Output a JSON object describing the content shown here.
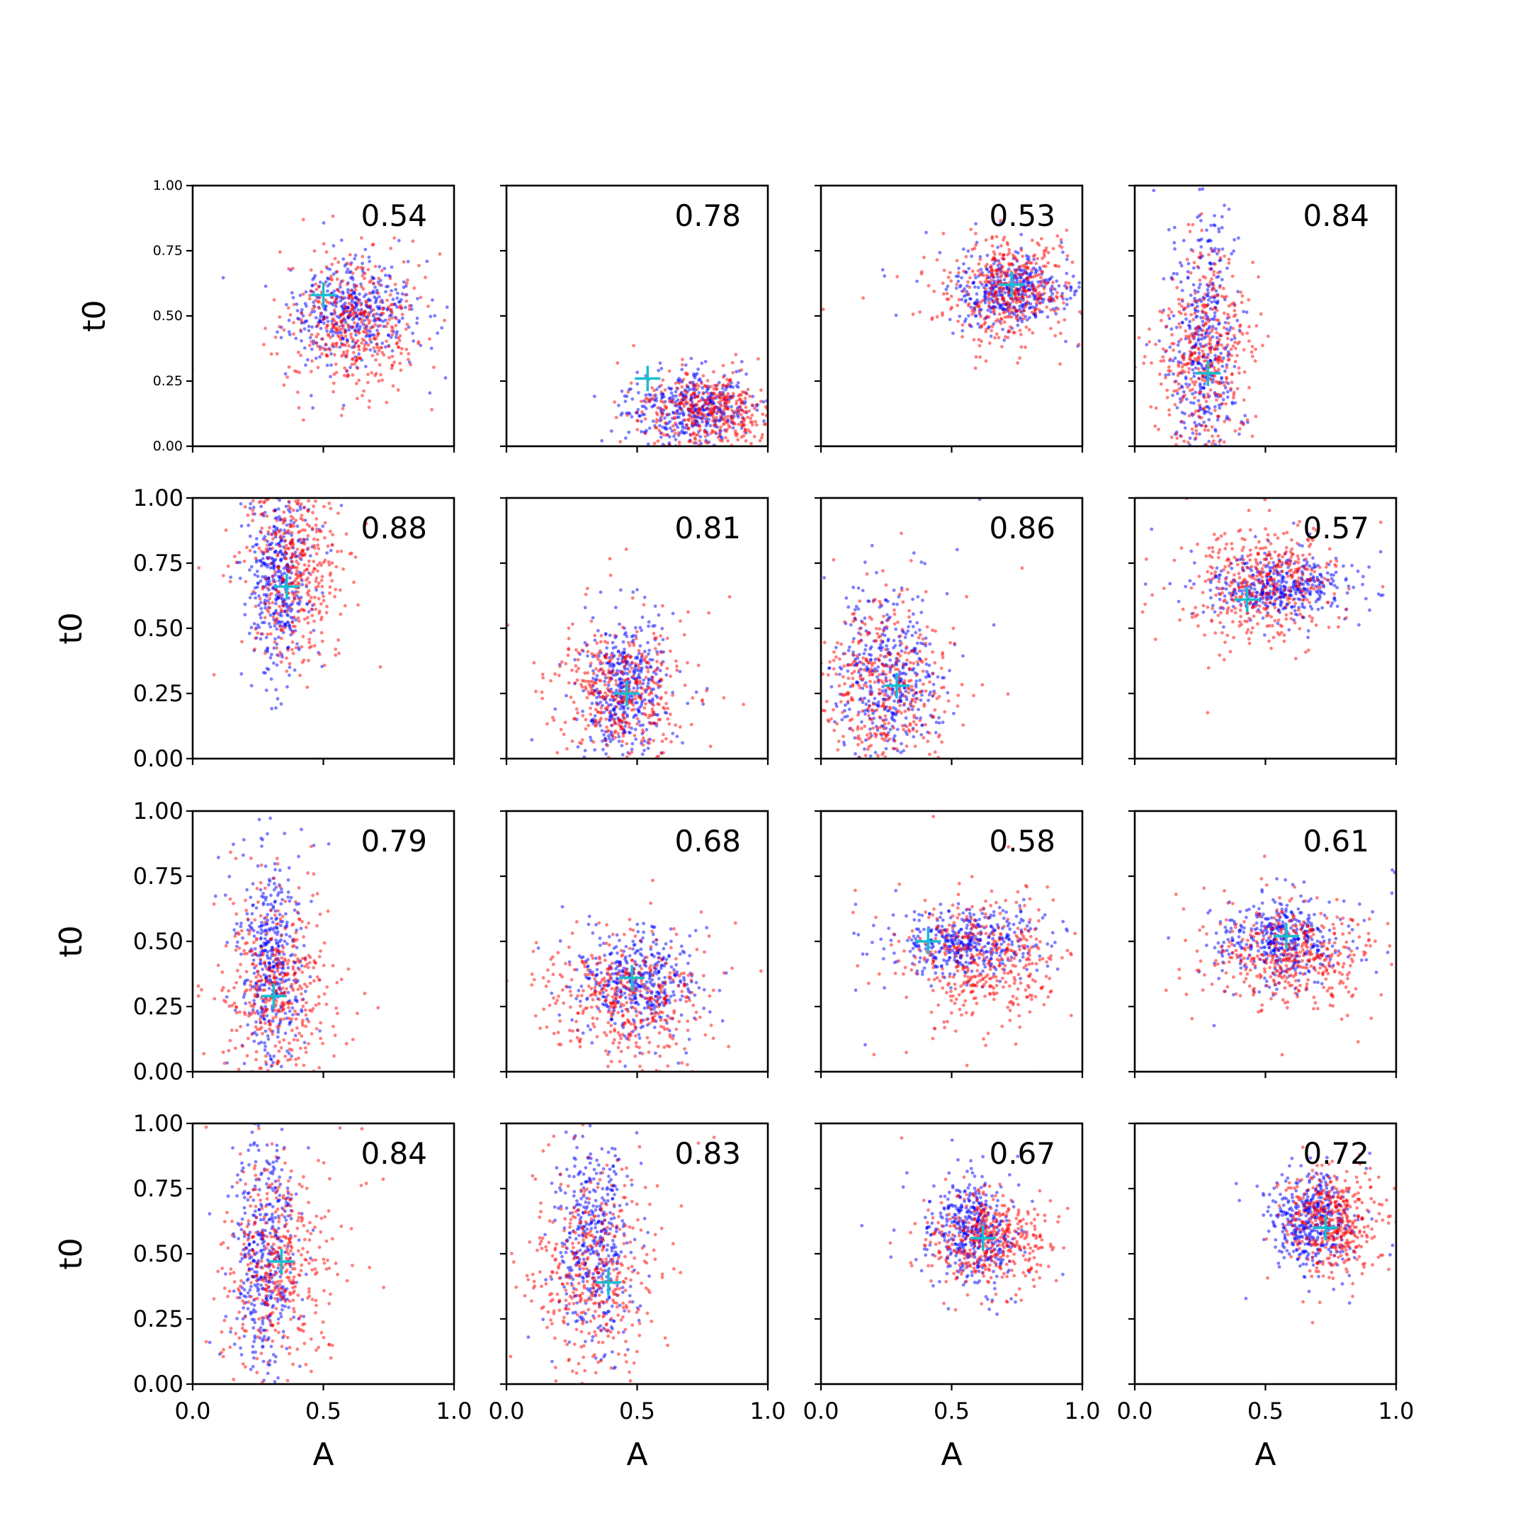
{
  "figure": {
    "x_label": "A",
    "y_label": "t0"
  },
  "colors": {
    "blue_points": "#0000ff",
    "red_points": "#ff0000",
    "marker": "#17becf",
    "axes": "#000000"
  },
  "chart_data": {
    "type": "scatter",
    "layout": "4x4 grid of scatter plots",
    "xlim": [
      0,
      1
    ],
    "ylim": [
      0,
      1
    ],
    "x_ticks": [
      "0.0",
      "0.5",
      "1.0"
    ],
    "y_ticks": [
      "0.00",
      "0.25",
      "0.50",
      "0.75",
      "1.00"
    ],
    "xlabel": "A",
    "ylabel": "t0",
    "series": [
      {
        "color": "blue",
        "marker": "dot"
      },
      {
        "color": "red",
        "marker": "dot"
      },
      {
        "color": "cyan",
        "marker": "plus"
      }
    ],
    "panels": [
      {
        "annotation": "0.54",
        "marker": [
          0.5,
          0.58
        ],
        "blue": {
          "cx": 0.62,
          "cy": 0.52,
          "sx": 0.12,
          "sy": 0.09
        },
        "red": {
          "cx": 0.62,
          "cy": 0.48,
          "sx": 0.13,
          "sy": 0.13
        }
      },
      {
        "annotation": "0.78",
        "marker": [
          0.54,
          0.26
        ],
        "blue": {
          "cx": 0.72,
          "cy": 0.15,
          "sx": 0.12,
          "sy": 0.07
        },
        "red": {
          "cx": 0.78,
          "cy": 0.13,
          "sx": 0.12,
          "sy": 0.08
        }
      },
      {
        "annotation": "0.53",
        "marker": [
          0.73,
          0.62
        ],
        "blue": {
          "cx": 0.72,
          "cy": 0.6,
          "sx": 0.11,
          "sy": 0.07
        },
        "red": {
          "cx": 0.72,
          "cy": 0.6,
          "sx": 0.11,
          "sy": 0.1
        }
      },
      {
        "annotation": "0.84",
        "marker": [
          0.28,
          0.28
        ],
        "blue": {
          "cx": 0.27,
          "cy": 0.4,
          "sx": 0.06,
          "sy": 0.25
        },
        "red": {
          "cx": 0.28,
          "cy": 0.35,
          "sx": 0.09,
          "sy": 0.2
        }
      },
      {
        "annotation": "0.88",
        "marker": [
          0.36,
          0.66
        ],
        "blue": {
          "cx": 0.33,
          "cy": 0.7,
          "sx": 0.06,
          "sy": 0.18
        },
        "red": {
          "cx": 0.4,
          "cy": 0.72,
          "sx": 0.09,
          "sy": 0.18
        }
      },
      {
        "annotation": "0.81",
        "marker": [
          0.46,
          0.25
        ],
        "blue": {
          "cx": 0.45,
          "cy": 0.28,
          "sx": 0.08,
          "sy": 0.13
        },
        "red": {
          "cx": 0.45,
          "cy": 0.25,
          "sx": 0.12,
          "sy": 0.12
        }
      },
      {
        "annotation": "0.86",
        "marker": [
          0.29,
          0.28
        ],
        "blue": {
          "cx": 0.26,
          "cy": 0.3,
          "sx": 0.1,
          "sy": 0.16
        },
        "red": {
          "cx": 0.24,
          "cy": 0.28,
          "sx": 0.13,
          "sy": 0.17
        }
      },
      {
        "annotation": "0.57",
        "marker": [
          0.43,
          0.61
        ],
        "blue": {
          "cx": 0.55,
          "cy": 0.65,
          "sx": 0.13,
          "sy": 0.06
        },
        "red": {
          "cx": 0.5,
          "cy": 0.68,
          "sx": 0.14,
          "sy": 0.1
        }
      },
      {
        "annotation": "0.79",
        "marker": [
          0.31,
          0.29
        ],
        "blue": {
          "cx": 0.3,
          "cy": 0.4,
          "sx": 0.06,
          "sy": 0.2
        },
        "red": {
          "cx": 0.32,
          "cy": 0.32,
          "sx": 0.1,
          "sy": 0.17
        }
      },
      {
        "annotation": "0.68",
        "marker": [
          0.48,
          0.36
        ],
        "blue": {
          "cx": 0.5,
          "cy": 0.34,
          "sx": 0.11,
          "sy": 0.09
        },
        "red": {
          "cx": 0.45,
          "cy": 0.28,
          "sx": 0.15,
          "sy": 0.12
        }
      },
      {
        "annotation": "0.58",
        "marker": [
          0.41,
          0.5
        ],
        "blue": {
          "cx": 0.55,
          "cy": 0.5,
          "sx": 0.14,
          "sy": 0.06
        },
        "red": {
          "cx": 0.62,
          "cy": 0.42,
          "sx": 0.16,
          "sy": 0.12
        }
      },
      {
        "annotation": "0.61",
        "marker": [
          0.58,
          0.52
        ],
        "blue": {
          "cx": 0.55,
          "cy": 0.5,
          "sx": 0.12,
          "sy": 0.08
        },
        "red": {
          "cx": 0.6,
          "cy": 0.45,
          "sx": 0.15,
          "sy": 0.1
        }
      },
      {
        "annotation": "0.84",
        "marker": [
          0.34,
          0.47
        ],
        "blue": {
          "cx": 0.28,
          "cy": 0.5,
          "sx": 0.06,
          "sy": 0.22
        },
        "red": {
          "cx": 0.32,
          "cy": 0.46,
          "sx": 0.1,
          "sy": 0.2
        }
      },
      {
        "annotation": "0.83",
        "marker": [
          0.39,
          0.39
        ],
        "blue": {
          "cx": 0.33,
          "cy": 0.55,
          "sx": 0.07,
          "sy": 0.2
        },
        "red": {
          "cx": 0.33,
          "cy": 0.45,
          "sx": 0.12,
          "sy": 0.2
        }
      },
      {
        "annotation": "0.67",
        "marker": [
          0.62,
          0.56
        ],
        "blue": {
          "cx": 0.58,
          "cy": 0.58,
          "sx": 0.08,
          "sy": 0.1
        },
        "red": {
          "cx": 0.65,
          "cy": 0.55,
          "sx": 0.11,
          "sy": 0.09
        }
      },
      {
        "annotation": "0.72",
        "marker": [
          0.73,
          0.6
        ],
        "blue": {
          "cx": 0.68,
          "cy": 0.62,
          "sx": 0.08,
          "sy": 0.09
        },
        "red": {
          "cx": 0.76,
          "cy": 0.62,
          "sx": 0.09,
          "sy": 0.1
        }
      }
    ]
  }
}
